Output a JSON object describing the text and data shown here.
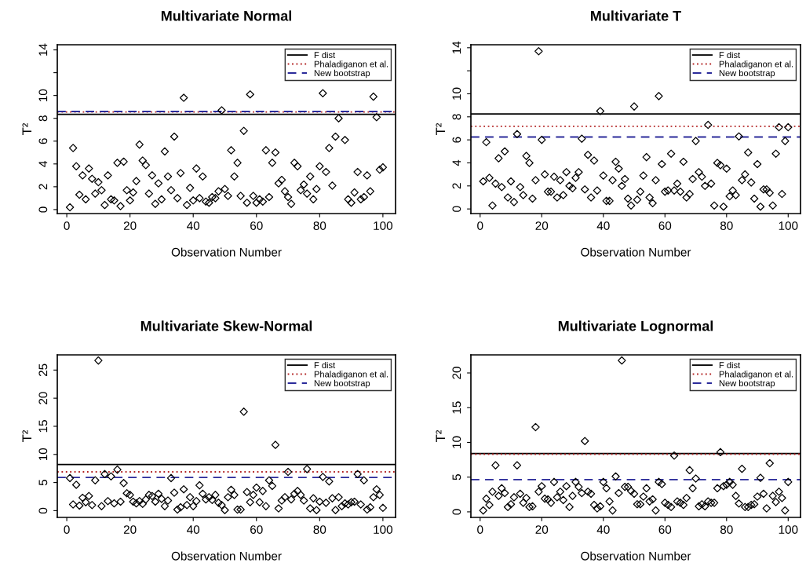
{
  "chart_data": [
    {
      "type": "scatter",
      "title": "Multivariate Normal",
      "xlabel": "Observation Number",
      "ylabel": "T²",
      "marker": "diamond",
      "legend": "top right",
      "grid": false,
      "xlim": [
        -3,
        104
      ],
      "xticks": [
        0,
        20,
        40,
        60,
        80,
        100
      ],
      "ylim": [
        -0.35,
        14.45
      ],
      "yticks": [
        0,
        2,
        4,
        6,
        8,
        10,
        {
          "value": 12,
          "label": null
        },
        14
      ],
      "x": [
        1,
        2,
        3,
        4,
        5,
        6,
        7,
        8,
        9,
        10,
        11,
        12,
        13,
        14,
        15,
        16,
        17,
        18,
        19,
        20,
        21,
        22,
        23,
        24,
        25,
        26,
        27,
        28,
        29,
        30,
        31,
        32,
        33,
        34,
        35,
        36,
        37,
        38,
        39,
        40,
        41,
        42,
        43,
        44,
        45,
        46,
        47,
        48,
        49,
        50,
        51,
        52,
        53,
        54,
        55,
        56,
        57,
        58,
        59,
        60,
        61,
        62,
        63,
        64,
        65,
        66,
        67,
        68,
        69,
        70,
        71,
        72,
        73,
        74,
        75,
        76,
        77,
        78,
        79,
        80,
        81,
        82,
        83,
        84,
        85,
        86,
        87,
        88,
        89,
        90,
        91,
        92,
        93,
        94,
        95,
        96,
        97,
        98,
        99,
        100
      ],
      "series": [
        {
          "color": "#000000",
          "values": [
            0.2,
            5.4,
            3.8,
            1.3,
            3.0,
            0.9,
            3.6,
            2.7,
            1.4,
            2.4,
            1.7,
            0.4,
            3.0,
            0.9,
            0.8,
            4.1,
            0.3,
            4.2,
            1.7,
            0.8,
            1.5,
            2.5,
            5.7,
            4.3,
            3.9,
            1.4,
            3.0,
            0.5,
            2.3,
            0.9,
            5.1,
            2.9,
            1.7,
            6.4,
            1.0,
            3.2,
            9.8,
            0.4,
            1.9,
            0.8,
            3.6,
            1.0,
            2.9,
            0.7,
            0.6,
            1.1,
            1.0,
            1.6,
            8.7,
            1.8,
            1.2,
            5.2,
            2.9,
            4.1,
            1.2,
            6.9,
            0.6,
            10.1,
            1.2,
            0.6,
            0.9,
            0.7,
            5.2,
            1.1,
            4.1,
            5.0,
            2.3,
            2.6,
            1.6,
            1.1,
            0.5,
            4.1,
            3.8,
            1.7,
            2.2,
            1.4,
            2.9,
            0.9,
            1.8,
            3.8,
            10.2,
            3.3,
            5.4,
            2.1,
            6.4,
            8.0,
            null,
            6.1,
            0.9,
            0.6,
            1.5,
            3.3,
            0.9,
            1.1,
            3.0,
            1.6,
            9.9,
            8.1,
            3.5,
            3.7
          ]
        }
      ],
      "ref_lines": [
        {
          "axis": "y",
          "value": 8.35,
          "label": "F dist",
          "color": "#000000",
          "line_style": "solid"
        },
        {
          "axis": "y",
          "value": 8.55,
          "label": "Phaladiganon et al.",
          "color": "#b22222",
          "line_style": "dotted"
        },
        {
          "axis": "y",
          "value": 8.6,
          "label": "New bootstrap",
          "color": "#2b2b9a",
          "line_style": "dashed"
        }
      ]
    },
    {
      "type": "scatter",
      "title": "Multivariate T",
      "xlabel": "Observation Number",
      "ylabel": "T²",
      "marker": "diamond",
      "legend": "top right",
      "grid": false,
      "xlim": [
        -3,
        104
      ],
      "xticks": [
        0,
        20,
        40,
        60,
        80,
        100
      ],
      "ylim": [
        -0.4,
        14.26
      ],
      "yticks": [
        0,
        2,
        4,
        6,
        8,
        10,
        {
          "value": 12,
          "label": null
        },
        14
      ],
      "x": [
        1,
        2,
        3,
        4,
        5,
        6,
        7,
        8,
        9,
        10,
        11,
        12,
        13,
        14,
        15,
        16,
        17,
        18,
        19,
        20,
        21,
        22,
        23,
        24,
        25,
        26,
        27,
        28,
        29,
        30,
        31,
        32,
        33,
        34,
        35,
        36,
        37,
        38,
        39,
        40,
        41,
        42,
        43,
        44,
        45,
        46,
        47,
        48,
        49,
        50,
        51,
        52,
        53,
        54,
        55,
        56,
        57,
        58,
        59,
        60,
        61,
        62,
        63,
        64,
        65,
        66,
        67,
        68,
        69,
        70,
        71,
        72,
        73,
        74,
        75,
        76,
        77,
        78,
        79,
        80,
        81,
        82,
        83,
        84,
        85,
        86,
        87,
        88,
        89,
        90,
        91,
        92,
        93,
        94,
        95,
        96,
        97,
        98,
        99,
        100
      ],
      "series": [
        {
          "color": "#000000",
          "values": [
            2.4,
            5.8,
            2.7,
            0.3,
            2.2,
            4.4,
            1.9,
            5.0,
            1.0,
            2.4,
            0.6,
            6.5,
            1.9,
            1.2,
            4.6,
            4.0,
            0.9,
            2.5,
            13.7,
            6.0,
            3.0,
            1.5,
            1.5,
            2.8,
            1.0,
            2.5,
            1.2,
            3.2,
            2.0,
            1.8,
            2.7,
            3.2,
            6.1,
            1.7,
            4.7,
            1.0,
            4.2,
            1.6,
            8.5,
            2.9,
            0.7,
            0.7,
            2.5,
            4.1,
            3.5,
            2.0,
            2.6,
            0.9,
            0.3,
            8.9,
            0.8,
            1.5,
            2.9,
            4.5,
            1.0,
            0.5,
            2.5,
            9.8,
            3.9,
            1.5,
            1.6,
            4.8,
            1.6,
            2.2,
            1.5,
            4.1,
            1.0,
            1.3,
            2.6,
            5.9,
            3.2,
            2.8,
            2.0,
            7.3,
            2.2,
            0.3,
            4.0,
            3.8,
            0.2,
            3.5,
            1.1,
            1.6,
            1.2,
            6.3,
            2.5,
            3.0,
            4.9,
            2.3,
            0.9,
            3.9,
            0.2,
            1.7,
            1.7,
            1.4,
            0.3,
            4.8,
            7.1,
            1.3,
            5.9,
            7.1
          ]
        }
      ],
      "ref_lines": [
        {
          "axis": "y",
          "value": 8.25,
          "label": "F dist",
          "color": "#000000",
          "line_style": "solid"
        },
        {
          "axis": "y",
          "value": 7.18,
          "label": "Phaladiganon et al.",
          "color": "#b22222",
          "line_style": "dotted"
        },
        {
          "axis": "y",
          "value": 6.25,
          "label": "New bootstrap",
          "color": "#2b2b9a",
          "line_style": "dashed"
        }
      ]
    },
    {
      "type": "scatter",
      "title": "Multivariate Skew-Normal",
      "xlabel": "Observation Number",
      "ylabel": "T²",
      "marker": "diamond",
      "legend": "top right",
      "grid": false,
      "xlim": [
        -3,
        104
      ],
      "xticks": [
        0,
        20,
        40,
        60,
        80,
        100
      ],
      "ylim": [
        -1.2,
        27.7
      ],
      "yticks": [
        0,
        5,
        10,
        15,
        20,
        25
      ],
      "x": [
        1,
        2,
        3,
        4,
        5,
        6,
        7,
        8,
        9,
        10,
        11,
        12,
        13,
        14,
        15,
        16,
        17,
        18,
        19,
        20,
        21,
        22,
        23,
        24,
        25,
        26,
        27,
        28,
        29,
        30,
        31,
        32,
        33,
        34,
        35,
        36,
        37,
        38,
        39,
        40,
        41,
        42,
        43,
        44,
        45,
        46,
        47,
        48,
        49,
        50,
        51,
        52,
        53,
        54,
        55,
        56,
        57,
        58,
        59,
        60,
        61,
        62,
        63,
        64,
        65,
        66,
        67,
        68,
        69,
        70,
        71,
        72,
        73,
        74,
        75,
        76,
        77,
        78,
        79,
        80,
        81,
        82,
        83,
        84,
        85,
        86,
        87,
        88,
        89,
        90,
        91,
        92,
        93,
        94,
        95,
        96,
        97,
        98,
        99,
        100
      ],
      "series": [
        {
          "color": "#000000",
          "values": [
            5.8,
            1.1,
            4.6,
            0.9,
            2.3,
            1.5,
            2.6,
            1.0,
            5.4,
            26.7,
            0.8,
            6.5,
            1.7,
            6.1,
            1.3,
            7.3,
            1.6,
            4.9,
            3.1,
            2.8,
            1.6,
            1.3,
            1.7,
            1.2,
            2.0,
            2.8,
            2.6,
            1.6,
            3.0,
            2.1,
            0.8,
            1.8,
            5.8,
            3.2,
            0.2,
            0.6,
            3.8,
            1.0,
            2.4,
            0.8,
            1.7,
            4.5,
            3.0,
            2.0,
            2.4,
            1.9,
            2.8,
            1.4,
            1.0,
            0.1,
            2.4,
            3.7,
            2.8,
            0.2,
            0.2,
            17.6,
            3.3,
            1.5,
            2.8,
            4.1,
            1.5,
            3.5,
            0.8,
            5.4,
            4.4,
            11.7,
            0.4,
            1.8,
            2.4,
            6.9,
            2.0,
            3.0,
            3.5,
            2.8,
            1.8,
            7.4,
            0.4,
            2.2,
            0.1,
            1.6,
            6.0,
            1.4,
            5.2,
            2.2,
            0.1,
            2.4,
            0.8,
            1.3,
            1.1,
            1.5,
            1.6,
            6.5,
            1.1,
            5.4,
            0.2,
            0.6,
            2.4,
            3.8,
            2.8,
            0.5
          ]
        }
      ],
      "ref_lines": [
        {
          "axis": "y",
          "value": 8.2,
          "label": "F dist",
          "color": "#000000",
          "line_style": "solid"
        },
        {
          "axis": "y",
          "value": 6.9,
          "label": "Phaladiganon et al.",
          "color": "#b22222",
          "line_style": "dotted"
        },
        {
          "axis": "y",
          "value": 5.9,
          "label": "New bootstrap",
          "color": "#2b2b9a",
          "line_style": "dashed"
        }
      ]
    },
    {
      "type": "scatter",
      "title": "Multivariate Lognormal",
      "xlabel": "Observation Number",
      "ylabel": "T²",
      "marker": "diamond",
      "legend": "top right",
      "grid": false,
      "xlim": [
        -3,
        104
      ],
      "xticks": [
        0,
        20,
        40,
        60,
        80,
        100
      ],
      "ylim": [
        -0.8,
        22.6
      ],
      "yticks": [
        0,
        5,
        10,
        15,
        20
      ],
      "x": [
        1,
        2,
        3,
        4,
        5,
        6,
        7,
        8,
        9,
        10,
        11,
        12,
        13,
        14,
        15,
        16,
        17,
        18,
        19,
        20,
        21,
        22,
        23,
        24,
        25,
        26,
        27,
        28,
        29,
        30,
        31,
        32,
        33,
        34,
        35,
        36,
        37,
        38,
        39,
        40,
        41,
        42,
        43,
        44,
        45,
        46,
        47,
        48,
        49,
        50,
        51,
        52,
        53,
        54,
        55,
        56,
        57,
        58,
        59,
        60,
        61,
        62,
        63,
        64,
        65,
        66,
        67,
        68,
        69,
        70,
        71,
        72,
        73,
        74,
        75,
        76,
        77,
        78,
        79,
        80,
        81,
        82,
        83,
        84,
        85,
        86,
        87,
        88,
        89,
        90,
        91,
        92,
        93,
        94,
        95,
        96,
        97,
        98,
        99,
        100
      ],
      "series": [
        {
          "color": "#000000",
          "values": [
            0.2,
            1.9,
            1.0,
            2.9,
            6.7,
            2.3,
            3.4,
            2.7,
            0.7,
            1.1,
            2.1,
            6.7,
            2.6,
            1.3,
            2.0,
            0.7,
            0.8,
            12.2,
            2.9,
            3.7,
            1.9,
            1.8,
            1.3,
            4.3,
            2.1,
            2.9,
            1.7,
            3.7,
            0.7,
            2.3,
            4.3,
            3.6,
            2.7,
            10.2,
            2.9,
            2.6,
            1.0,
            0.5,
            0.8,
            4.3,
            3.4,
            1.5,
            0.2,
            5.1,
            2.7,
            21.8,
            3.6,
            3.6,
            3.0,
            2.6,
            1.1,
            1.1,
            2.2,
            3.4,
            1.5,
            1.8,
            0.2,
            4.3,
            4.0,
            1.3,
            1.0,
            0.7,
            8.1,
            1.5,
            1.3,
            1.0,
            2.0,
            6.0,
            3.4,
            4.8,
            0.8,
            1.1,
            0.8,
            1.5,
            1.3,
            1.3,
            3.4,
            8.6,
            3.7,
            3.9,
            4.3,
            3.9,
            2.3,
            1.2,
            6.2,
            0.7,
            0.7,
            1.0,
            1.1,
            2.2,
            4.9,
            2.6,
            0.5,
            7.0,
            2.3,
            1.4,
            2.9,
            2.0,
            0.2,
            4.3
          ]
        }
      ],
      "ref_lines": [
        {
          "axis": "y",
          "value": 8.4,
          "label": "F dist",
          "color": "#000000",
          "line_style": "solid"
        },
        {
          "axis": "y",
          "value": 8.3,
          "label": "Phaladiganon et al.",
          "color": "#b22222",
          "line_style": "dotted"
        },
        {
          "axis": "y",
          "value": 4.65,
          "label": "New bootstrap",
          "color": "#2b2b9a",
          "line_style": "dashed"
        }
      ]
    }
  ]
}
